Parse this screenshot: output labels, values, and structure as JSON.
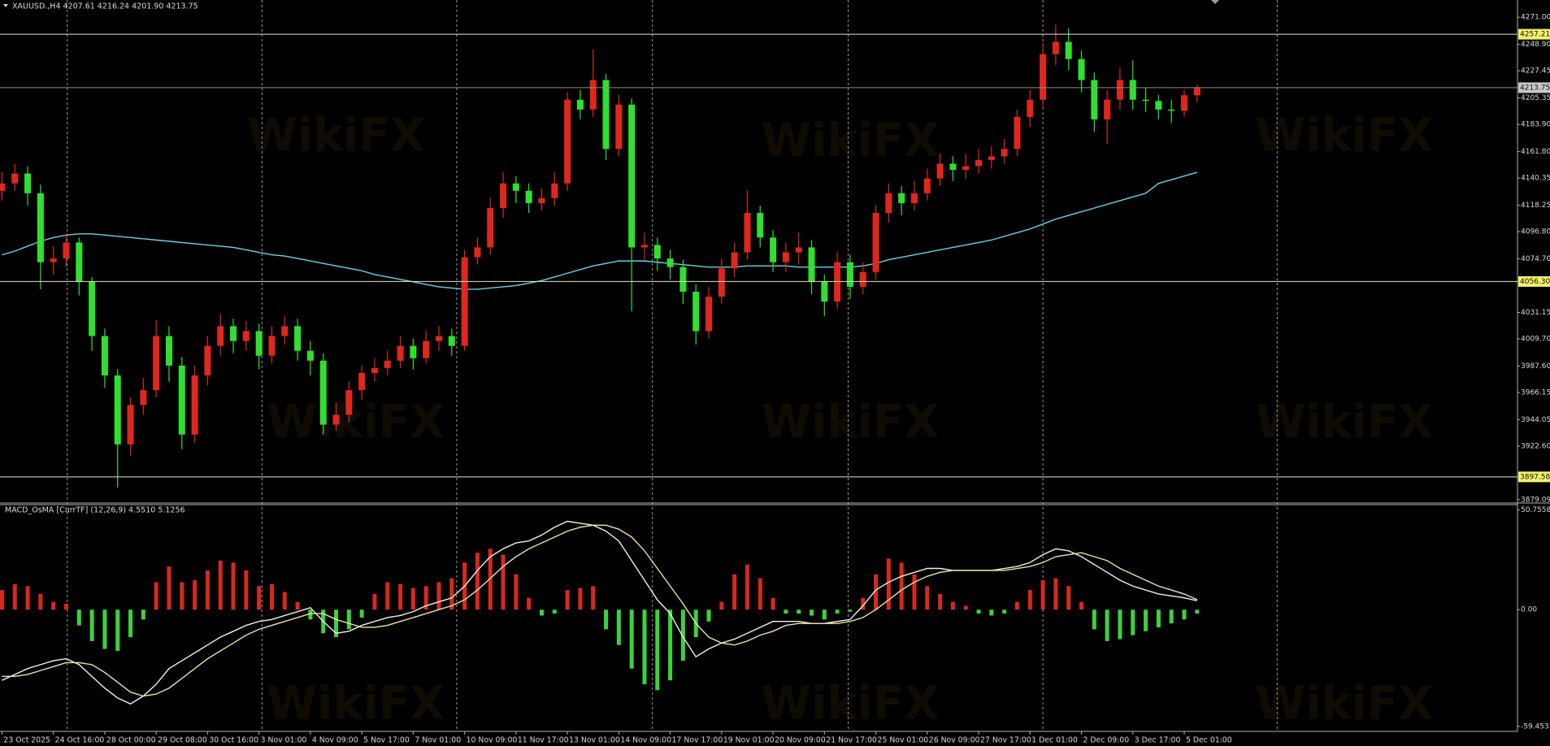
{
  "chart_data": [
    {
      "type": "candlestick",
      "title": "XAUUSD.,H4 4207.61 4216.24 4201.90 4213.75",
      "watermark": "WikiFX",
      "categories": [
        "23 Oct 2025",
        null,
        null,
        null,
        "24 Oct 16:00",
        null,
        null,
        null,
        "28 Oct 00:00",
        null,
        null,
        null,
        "29 Oct 08:00",
        null,
        null,
        null,
        "30 Oct 16:00",
        null,
        null,
        null,
        "3 Nov 01:00",
        null,
        null,
        null,
        "4 Nov 09:00",
        null,
        null,
        null,
        "5 Nov 17:00",
        null,
        null,
        null,
        "7 Nov 01:00",
        null,
        null,
        null,
        "10 Nov 09:00",
        null,
        null,
        null,
        "11 Nov 17:00",
        null,
        null,
        null,
        "13 Nov 01:00",
        null,
        null,
        null,
        "14 Nov 09:00",
        null,
        null,
        null,
        "17 Nov 17:00",
        null,
        null,
        null,
        "19 Nov 01:00",
        null,
        null,
        null,
        "20 Nov 09:00",
        null,
        null,
        null,
        "21 Nov 17:00",
        null,
        null,
        null,
        "25 Nov 01:00",
        null,
        null,
        null,
        "26 Nov 09:00",
        null,
        null,
        null,
        "27 Nov 17:00",
        null,
        null,
        null,
        "1 Dec 01:00",
        null,
        null,
        null,
        "2 Dec 09:00",
        null,
        null,
        null,
        "3 Dec 17:00",
        null,
        null,
        null,
        "5 Dec 01:00",
        null
      ],
      "open": [
        4130,
        4136,
        4144,
        4128,
        4072,
        4075,
        4088,
        4056,
        4012,
        3980,
        3924,
        3956,
        3968,
        4012,
        3988,
        3932,
        3980,
        4004,
        4020,
        4008,
        4016,
        3996,
        4012,
        4020,
        4000,
        3992,
        3940,
        3948,
        3968,
        3982,
        3986,
        3992,
        4004,
        3994,
        4008,
        4012,
        4004,
        4076,
        4084,
        4116,
        4136,
        4130,
        4120,
        4124,
        4136,
        4204,
        4196,
        4220,
        4164,
        4200,
        4084,
        4086,
        4075,
        4068,
        4048,
        4016,
        4044,
        4067,
        4080,
        4112,
        4092,
        4072,
        4080,
        4084,
        4056,
        4040,
        4072,
        4052,
        4064,
        4112,
        4128,
        4120,
        4128,
        4140,
        4152,
        4147,
        4150,
        4155,
        4158,
        4164,
        4190,
        4204,
        4241,
        4251,
        4237,
        4220,
        4188,
        4204,
        4220,
        4204,
        4203,
        4196,
        4195,
        4207.61
      ],
      "high": [
        4145,
        4152,
        4150,
        4135,
        4085,
        4095,
        4092,
        4060,
        4018,
        3985,
        3962,
        3978,
        4025,
        4020,
        3995,
        3988,
        4012,
        4030,
        4026,
        4024,
        4022,
        4020,
        4028,
        4026,
        4008,
        3998,
        3958,
        3975,
        3988,
        3994,
        4000,
        4012,
        4010,
        4016,
        4020,
        4018,
        4082,
        4092,
        4124,
        4145,
        4142,
        4136,
        4132,
        4145,
        4210,
        4212,
        4245,
        4225,
        4208,
        4205,
        4096,
        4092,
        4082,
        4074,
        4054,
        4052,
        4075,
        4088,
        4130,
        4118,
        4098,
        4088,
        4096,
        4090,
        4062,
        4080,
        4078,
        4072,
        4118,
        4136,
        4134,
        4138,
        4148,
        4160,
        4158,
        4160,
        4164,
        4166,
        4172,
        4196,
        4212,
        4250,
        4265,
        4262,
        4244,
        4226,
        4212,
        4230,
        4236,
        4214,
        4208,
        4204,
        4212,
        4216.24
      ],
      "low": [
        4122,
        4130,
        4118,
        4050,
        4062,
        4068,
        4045,
        4000,
        3970,
        3889,
        3915,
        3948,
        3962,
        3975,
        3920,
        3925,
        3972,
        3996,
        3998,
        4000,
        3985,
        3990,
        4005,
        3992,
        3980,
        3932,
        3935,
        3942,
        3960,
        3975,
        3980,
        3986,
        3985,
        3990,
        4000,
        3996,
        4000,
        4070,
        4078,
        4108,
        4120,
        4112,
        4114,
        4118,
        4130,
        4188,
        4190,
        4155,
        4158,
        4032,
        4074,
        4065,
        4058,
        4038,
        4005,
        4010,
        4038,
        4060,
        4074,
        4084,
        4064,
        4064,
        4070,
        4046,
        4028,
        4034,
        4042,
        4046,
        4058,
        4104,
        4110,
        4114,
        4122,
        4134,
        4138,
        4140,
        4144,
        4148,
        4152,
        4158,
        4182,
        4198,
        4232,
        4228,
        4210,
        4178,
        4168,
        4196,
        4196,
        4194,
        4188,
        4185,
        4190,
        4201.9
      ],
      "close": [
        4136,
        4144,
        4128,
        4072,
        4075,
        4088,
        4056,
        4012,
        3980,
        3924,
        3956,
        3968,
        4012,
        3988,
        3932,
        3980,
        4004,
        4020,
        4008,
        4016,
        3996,
        4012,
        4020,
        4000,
        3992,
        3940,
        3948,
        3968,
        3982,
        3986,
        3992,
        4004,
        3994,
        4008,
        4012,
        4004,
        4076,
        4084,
        4116,
        4136,
        4130,
        4120,
        4124,
        4136,
        4204,
        4196,
        4220,
        4164,
        4200,
        4084,
        4086,
        4075,
        4068,
        4048,
        4016,
        4044,
        4067,
        4080,
        4112,
        4092,
        4072,
        4080,
        4084,
        4056,
        4040,
        4072,
        4052,
        4064,
        4112,
        4128,
        4120,
        4128,
        4140,
        4152,
        4147,
        4150,
        4155,
        4158,
        4164,
        4190,
        4204,
        4241,
        4251,
        4237,
        4220,
        4188,
        4204,
        4220,
        4204,
        4203,
        4196,
        4195,
        4207.61,
        4213.75
      ],
      "up_color": "#e0261e",
      "down_color": "#2fe02f",
      "ma": {
        "color": "#62d4e8",
        "values": [
          4078,
          4081,
          4085,
          4089,
          4092,
          4094,
          4095,
          4095,
          4094,
          4093,
          4092,
          4091,
          4090,
          4089,
          4088,
          4087,
          4086,
          4085,
          4084,
          4082,
          4080,
          4078,
          4077,
          4075,
          4073,
          4071,
          4069,
          4067,
          4065,
          4062,
          4060,
          4058,
          4056,
          4054,
          4052,
          4051,
          4050,
          4050,
          4051,
          4052,
          4053,
          4055,
          4057,
          4060,
          4063,
          4066,
          4069,
          4071,
          4073,
          4073,
          4073,
          4072,
          4071,
          4070,
          4069,
          4068,
          4068,
          4068,
          4069,
          4069,
          4069,
          4069,
          4068,
          4068,
          4068,
          4068,
          4068,
          4069,
          4071,
          4074,
          4076,
          4078,
          4080,
          4082,
          4084,
          4086,
          4088,
          4090,
          4093,
          4096,
          4099,
          4103,
          4107,
          4110,
          4113,
          4116,
          4119,
          4122,
          4125,
          4128,
          4136,
          4139,
          4142,
          4145
        ]
      },
      "levels": [
        {
          "value": 4257.21,
          "color": "#e6e6c8",
          "label_color": "#f2f26a"
        },
        {
          "value": 4213.75,
          "color": "#8c8c8c",
          "label_color": "#c8c8c8"
        },
        {
          "value": 4056.3,
          "label": "4056.30",
          "color": "#e6e6c8",
          "label_color": "#f2f26a"
        },
        {
          "value": 3897.58,
          "color": "#e6e6c8",
          "label_color": "#f2f26a"
        }
      ],
      "ylim": [
        3877,
        4285
      ],
      "yticks": [
        {
          "value": 4271,
          "label": "4271.00"
        },
        {
          "value": 4248.9,
          "label": "4248.90"
        },
        4227.45,
        4205.35,
        {
          "value": 4183.9,
          "label": "4183.90"
        },
        {
          "value": 4161.8,
          "label": "4161.80"
        },
        4140.35,
        4118.25,
        {
          "value": 4096.8,
          "label": "4096.80"
        },
        {
          "value": 4074.7,
          "label": "4074.70"
        },
        4031.15,
        {
          "value": 4009.7,
          "label": "4009.70"
        },
        {
          "value": 3987.6,
          "label": "3987.60"
        },
        3966.15,
        3944.05,
        {
          "value": 3922.6,
          "label": "3922.60"
        },
        3879.09
      ]
    },
    {
      "type": "macd",
      "title": "MACD_OsMA [CurrTF] (12,26,9) 4.5510 5.1256",
      "histogram": {
        "up_color": "#d8281e",
        "down_color": "#3cd23c",
        "values": [
          10,
          13,
          12,
          8,
          4,
          3,
          -8,
          -16,
          -20,
          -21,
          -14,
          -5,
          14,
          22,
          14,
          15,
          20,
          25,
          24,
          20,
          12,
          13,
          9,
          4,
          -5,
          -12,
          -14,
          -10,
          -4,
          8,
          14,
          13,
          11,
          12,
          14,
          16,
          24,
          29,
          31,
          28,
          18,
          6,
          -3,
          -2,
          10,
          11,
          12,
          -10,
          -18,
          -30,
          -38,
          -41,
          -36,
          -26,
          -14,
          -6,
          4,
          18,
          23,
          16,
          6,
          -2,
          -2,
          -3,
          -5,
          -2,
          -1,
          6,
          18,
          26,
          24,
          18,
          12,
          8,
          4,
          2,
          -2,
          -3,
          -2,
          4,
          10,
          15,
          16,
          12,
          4,
          -10,
          -16,
          -15,
          -13,
          -11,
          -9,
          -7,
          -5,
          -2
        ]
      },
      "series": [
        {
          "color": "#f0f0f0",
          "values": [
            -36,
            -33,
            -30,
            -28,
            -26,
            -25,
            -28,
            -34,
            -40,
            -45,
            -48,
            -44,
            -38,
            -30,
            -26,
            -22,
            -18,
            -14,
            -11,
            -8,
            -6,
            -5,
            -3,
            -1,
            1,
            -6,
            -12,
            -11,
            -8,
            -6,
            -4,
            -3,
            -1,
            2,
            4,
            6,
            12,
            20,
            27,
            31,
            34,
            35,
            38,
            42,
            45,
            44,
            43,
            40,
            35,
            25,
            15,
            5,
            -2,
            -14,
            -24,
            -20,
            -17,
            -15,
            -12,
            -9,
            -6,
            -6,
            -6,
            -7,
            -7,
            -6,
            -5,
            2,
            10,
            14,
            17,
            19,
            21,
            21,
            20,
            20,
            20,
            20,
            21,
            22,
            24,
            28,
            31,
            30,
            27,
            23,
            19,
            15,
            12,
            10,
            8,
            7,
            6,
            4.551
          ]
        },
        {
          "color": "#efe3a0",
          "values": [
            -34,
            -34,
            -33,
            -31,
            -29,
            -27,
            -27,
            -28,
            -32,
            -37,
            -42,
            -44,
            -43,
            -40,
            -35,
            -30,
            -25,
            -21,
            -17,
            -13,
            -10,
            -8,
            -6,
            -4,
            -2,
            -2,
            -5,
            -7,
            -9,
            -9,
            -8,
            -6,
            -4,
            -2,
            0,
            2,
            5,
            10,
            16,
            22,
            27,
            31,
            34,
            37,
            40,
            42,
            43,
            43,
            41,
            37,
            30,
            21,
            12,
            3,
            -7,
            -14,
            -17,
            -18,
            -16,
            -13,
            -11,
            -8,
            -7,
            -7,
            -7,
            -7,
            -6,
            -4,
            0,
            5,
            10,
            14,
            17,
            19,
            20,
            20,
            20,
            20,
            20,
            21,
            22,
            24,
            27,
            28,
            29,
            27,
            25,
            21,
            18,
            15,
            12,
            10,
            8,
            5.1256
          ]
        }
      ],
      "ylim": [
        -62,
        53.5
      ],
      "yticks": [
        50.7558,
        {
          "value": 0,
          "label": "0.00"
        },
        -59.4533
      ]
    }
  ]
}
